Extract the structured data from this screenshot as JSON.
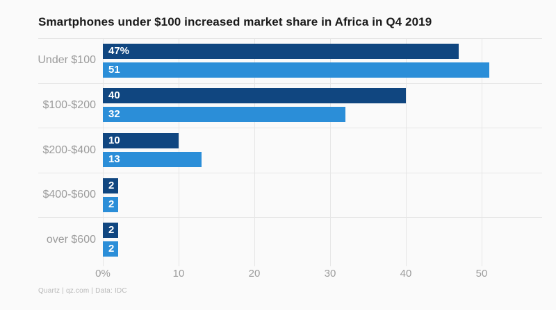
{
  "page": {
    "background_color": "#fafafa"
  },
  "header": {
    "title": "Smartphones under $100 increased market share in Africa in Q4 2019"
  },
  "footer": {
    "source": "Quartz | qz.com | Data: IDC"
  },
  "colors": {
    "series_dark": "#104680",
    "series_light": "#2b8ed8",
    "gridline": "#e6e6e6",
    "title_text": "#1a1a1a",
    "axis_text": "#9b9b9b",
    "footer_text": "#b9b9b9",
    "bar_value_text": "#ffffff"
  },
  "chart_data": {
    "type": "bar",
    "orientation": "horizontal",
    "title": "Smartphones under $100 increased market share in Africa in Q4 2019",
    "xlabel": "",
    "ylabel": "",
    "categories": [
      "Under $100",
      "$100-$200",
      "$200-$400",
      "$400-$600",
      "over $600"
    ],
    "series": [
      {
        "name": "series-1-dark-navy",
        "color": "#104680",
        "values": [
          47,
          40,
          10,
          2,
          2
        ],
        "labels": [
          "47%",
          "40",
          "10",
          "2",
          "2"
        ]
      },
      {
        "name": "series-2-light-blue",
        "color": "#2b8ed8",
        "values": [
          51,
          32,
          13,
          2,
          2
        ],
        "labels": [
          "51",
          "32",
          "13",
          "2",
          "2"
        ]
      }
    ],
    "xlim": [
      0,
      58
    ],
    "x_ticks": [
      {
        "value": 0,
        "label": "0%"
      },
      {
        "value": 10,
        "label": "10"
      },
      {
        "value": 20,
        "label": "20"
      },
      {
        "value": 30,
        "label": "30"
      },
      {
        "value": 40,
        "label": "40"
      },
      {
        "value": 50,
        "label": "50"
      }
    ],
    "grid": "vertical-and-group-separators",
    "legend": "none"
  }
}
